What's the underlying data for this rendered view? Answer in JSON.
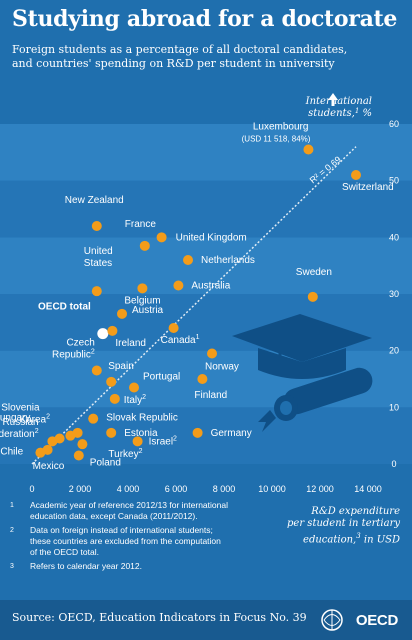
{
  "header": {
    "title": "Studying abroad for a doctorate",
    "subtitle_line1": "Foreign students as a percentage of all doctoral candidates,",
    "subtitle_line2": "and countries' spending on R&D per student in university"
  },
  "chart_data": {
    "type": "scatter",
    "xlim": [
      0,
      14000
    ],
    "ylim": [
      0,
      60
    ],
    "x_ticks": [
      "0",
      "2 000",
      "4 000",
      "6 000",
      "8 000",
      "10 000",
      "12 000",
      "14 000"
    ],
    "x_tick_values": [
      0,
      2000,
      4000,
      6000,
      8000,
      10000,
      12000,
      14000
    ],
    "y_ticks": [
      "0",
      "10",
      "20",
      "30",
      "40",
      "50",
      "60"
    ],
    "y_tick_values": [
      0,
      10,
      20,
      30,
      40,
      50,
      60
    ],
    "ylabel_line1": "International",
    "ylabel_line2": "students,",
    "ylabel_sup": "1",
    "ylabel_unit": " %",
    "grid": "horizontal bands",
    "trendline": {
      "label": "R² = 0.69",
      "x": [
        0,
        13500
      ],
      "y": [
        0,
        56
      ]
    },
    "points": [
      {
        "name": "Luxembourg",
        "note": "(USD 11 518, 84%)",
        "x": 11518,
        "y": 55.5
      },
      {
        "name": "Switzerland",
        "x": 13500,
        "y": 51
      },
      {
        "name": "New Zealand",
        "x": 2700,
        "y": 42
      },
      {
        "name": "France",
        "x": 4700,
        "y": 38.5
      },
      {
        "name": "United Kingdom",
        "x": 5400,
        "y": 40
      },
      {
        "name": "Netherlands",
        "x": 6500,
        "y": 36
      },
      {
        "name": "United States",
        "x": 2700,
        "y": 30.5
      },
      {
        "name": "Belgium",
        "x": 4600,
        "y": 31
      },
      {
        "name": "Australia",
        "x": 6100,
        "y": 31.5
      },
      {
        "name": "Sweden",
        "x": 11700,
        "y": 29.5
      },
      {
        "name": "Austria",
        "x": 3750,
        "y": 26.5
      },
      {
        "name": "OECD total",
        "x": 2950,
        "y": 23,
        "highlight": true
      },
      {
        "name": "Ireland",
        "x": 3350,
        "y": 23.5
      },
      {
        "name": "Canada",
        "sup": "1",
        "x": 5900,
        "y": 24
      },
      {
        "name": "Czech Republic",
        "sup": "2",
        "x": 2700,
        "y": 16.5
      },
      {
        "name": "Spain",
        "x": 3300,
        "y": 14.5
      },
      {
        "name": "Portugal",
        "x": 4250,
        "y": 13.5
      },
      {
        "name": "Norway",
        "x": 7500,
        "y": 19.5
      },
      {
        "name": "Finland",
        "x": 7100,
        "y": 15
      },
      {
        "name": "Italy",
        "sup": "2",
        "x": 3450,
        "y": 11.5
      },
      {
        "name": "Slovenia",
        "x": 1150,
        "y": 4.5
      },
      {
        "name": "Korea",
        "sup": "2",
        "x": 850,
        "y": 4
      },
      {
        "name": "Hungary",
        "x": 1600,
        "y": 5
      },
      {
        "name": "Russian Federation",
        "sup": "2",
        "x": 1900,
        "y": 5.5
      },
      {
        "name": "Chile",
        "x": 350,
        "y": 2
      },
      {
        "name": "Mexico",
        "x": 650,
        "y": 2.5
      },
      {
        "name": "Slovak Republic",
        "x": 2550,
        "y": 8
      },
      {
        "name": "Estonia",
        "x": 3300,
        "y": 5.5
      },
      {
        "name": "Israel",
        "sup": "2",
        "x": 4400,
        "y": 4
      },
      {
        "name": "Turkey",
        "sup": "2",
        "x": 2100,
        "y": 3.5
      },
      {
        "name": "Poland",
        "x": 1950,
        "y": 1.5
      },
      {
        "name": "Germany",
        "x": 6900,
        "y": 5.5
      }
    ]
  },
  "xaxis": {
    "label_line1": "R&D expenditure",
    "label_line2": "per student in tertiary",
    "label_line3a": "education,",
    "label_line3_sup": "3",
    "label_line3b": " in USD"
  },
  "footnotes": [
    {
      "mark": "1",
      "text": "Academic year of reference 2012/13 for international education data, except Canada (2011/2012)."
    },
    {
      "mark": "2",
      "text": "Data on foreign instead of international students; these countries are excluded from the computation of the OECD total."
    },
    {
      "mark": "3",
      "text": "Refers to calendar year 2012."
    }
  ],
  "footer": {
    "source": "Source: OECD, Education Indicators in Focus No. 39",
    "logo_text": "OECD"
  },
  "colors": {
    "background": "#1f6fae",
    "band_light": "#2f82c2",
    "band_dark": "#2575b6",
    "point": "#f39c1a",
    "oecd_point": "#ffffff",
    "illustration": "#0f4f86"
  }
}
